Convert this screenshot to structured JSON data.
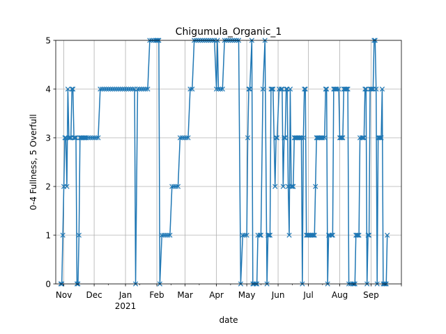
{
  "chart_data": {
    "type": "line",
    "title": "Chigumula_Organic_1",
    "xlabel": "date",
    "ylabel": "0-4 Fullness, 5 Overfull",
    "ylim": [
      0,
      5
    ],
    "yticks": [
      "0",
      "1",
      "2",
      "3",
      "4",
      "5"
    ],
    "xlim": [
      "2020-10-24",
      "2021-10-01"
    ],
    "xticks": [
      {
        "date": "2020-11-01",
        "label": "Nov"
      },
      {
        "date": "2020-12-01",
        "label": "Dec"
      },
      {
        "date": "2021-01-01",
        "label": "Jan",
        "sublabel": "2021"
      },
      {
        "date": "2021-02-01",
        "label": "Feb"
      },
      {
        "date": "2021-03-01",
        "label": "Mar"
      },
      {
        "date": "2021-04-01",
        "label": "Apr"
      },
      {
        "date": "2021-05-01",
        "label": "May"
      },
      {
        "date": "2021-06-01",
        "label": "Jun"
      },
      {
        "date": "2021-07-01",
        "label": "Jul"
      },
      {
        "date": "2021-08-01",
        "label": "Aug"
      },
      {
        "date": "2021-09-01",
        "label": "Sep"
      }
    ],
    "grid": true,
    "marker": "x",
    "color": "#1f77b4",
    "series": [
      {
        "x": [
          "2020-10-29",
          "2020-10-30",
          "2020-10-31",
          "2020-11-01",
          "2020-11-02",
          "2020-11-03",
          "2020-11-04",
          "2020-11-05",
          "2020-11-06",
          "2020-11-07",
          "2020-11-08",
          "2020-11-09",
          "2020-11-10",
          "2020-11-11",
          "2020-11-12",
          "2020-11-13",
          "2020-11-14",
          "2020-11-15",
          "2020-11-16",
          "2020-11-17",
          "2020-11-18",
          "2020-11-19",
          "2020-11-20",
          "2020-11-21",
          "2020-11-22",
          "2020-11-23",
          "2020-11-25",
          "2020-11-27",
          "2020-11-29",
          "2020-12-01",
          "2020-12-03",
          "2020-12-05",
          "2020-12-07",
          "2020-12-09",
          "2020-12-11",
          "2020-12-13",
          "2020-12-15",
          "2020-12-17",
          "2020-12-19",
          "2020-12-21",
          "2020-12-23",
          "2020-12-25",
          "2020-12-27",
          "2020-12-29",
          "2020-12-31",
          "2021-01-02",
          "2021-01-04",
          "2021-01-06",
          "2021-01-08",
          "2021-01-10",
          "2021-01-11",
          "2021-01-13",
          "2021-01-15",
          "2021-01-17",
          "2021-01-19",
          "2021-01-21",
          "2021-01-23",
          "2021-01-25",
          "2021-01-27",
          "2021-01-29",
          "2021-01-31",
          "2021-02-01",
          "2021-02-02",
          "2021-02-03",
          "2021-02-04",
          "2021-02-06",
          "2021-02-08",
          "2021-02-10",
          "2021-02-12",
          "2021-02-14",
          "2021-02-16",
          "2021-02-18",
          "2021-02-20",
          "2021-02-22",
          "2021-02-24",
          "2021-02-26",
          "2021-02-28",
          "2021-03-02",
          "2021-03-04",
          "2021-03-06",
          "2021-03-08",
          "2021-03-10",
          "2021-03-12",
          "2021-03-14",
          "2021-03-16",
          "2021-03-18",
          "2021-03-20",
          "2021-03-22",
          "2021-03-24",
          "2021-03-26",
          "2021-03-28",
          "2021-03-30",
          "2021-04-01",
          "2021-04-02",
          "2021-04-03",
          "2021-04-05",
          "2021-04-07",
          "2021-04-09",
          "2021-04-11",
          "2021-04-13",
          "2021-04-15",
          "2021-04-17",
          "2021-04-19",
          "2021-04-21",
          "2021-04-23",
          "2021-04-25",
          "2021-04-27",
          "2021-04-29",
          "2021-05-01",
          "2021-05-02",
          "2021-05-03",
          "2021-05-04",
          "2021-05-06",
          "2021-05-07",
          "2021-05-08",
          "2021-05-10",
          "2021-05-11",
          "2021-05-12",
          "2021-05-14",
          "2021-05-15",
          "2021-05-17",
          "2021-05-19",
          "2021-05-21",
          "2021-05-22",
          "2021-05-23",
          "2021-05-24",
          "2021-05-25",
          "2021-05-26",
          "2021-05-27",
          "2021-05-29",
          "2021-05-30",
          "2021-05-31",
          "2021-06-02",
          "2021-06-04",
          "2021-06-05",
          "2021-06-06",
          "2021-06-07",
          "2021-06-08",
          "2021-06-09",
          "2021-06-10",
          "2021-06-11",
          "2021-06-12",
          "2021-06-13",
          "2021-06-14",
          "2021-06-15",
          "2021-06-16",
          "2021-06-17",
          "2021-06-18",
          "2021-06-19",
          "2021-06-20",
          "2021-06-21",
          "2021-06-22",
          "2021-06-23",
          "2021-06-24",
          "2021-06-25",
          "2021-06-26",
          "2021-06-27",
          "2021-06-28",
          "2021-06-29",
          "2021-06-30",
          "2021-07-01",
          "2021-07-02",
          "2021-07-03",
          "2021-07-04",
          "2021-07-05",
          "2021-07-06",
          "2021-07-07",
          "2021-07-08",
          "2021-07-09",
          "2021-07-10",
          "2021-07-11",
          "2021-07-12",
          "2021-07-13",
          "2021-07-14",
          "2021-07-15",
          "2021-07-17",
          "2021-07-18",
          "2021-07-19",
          "2021-07-20",
          "2021-07-21",
          "2021-07-22",
          "2021-07-24",
          "2021-07-25",
          "2021-07-26",
          "2021-07-27",
          "2021-07-28",
          "2021-07-29",
          "2021-07-31",
          "2021-08-01",
          "2021-08-02",
          "2021-08-03",
          "2021-08-04",
          "2021-08-05",
          "2021-08-06",
          "2021-08-07",
          "2021-08-08",
          "2021-08-09",
          "2021-08-10",
          "2021-08-12",
          "2021-08-14",
          "2021-08-15",
          "2021-08-16",
          "2021-08-17",
          "2021-08-18",
          "2021-08-19",
          "2021-08-20",
          "2021-08-21",
          "2021-08-23",
          "2021-08-24",
          "2021-08-25",
          "2021-08-26",
          "2021-08-27",
          "2021-08-28",
          "2021-08-29",
          "2021-08-30",
          "2021-08-31",
          "2021-09-01",
          "2021-09-02",
          "2021-09-03",
          "2021-09-04",
          "2021-09-05",
          "2021-09-06",
          "2021-09-07",
          "2021-09-08",
          "2021-09-09",
          "2021-09-10",
          "2021-09-11",
          "2021-09-12",
          "2021-09-13",
          "2021-09-14",
          "2021-09-15",
          "2021-09-16",
          "2021-09-17"
        ],
        "y": [
          0,
          0,
          1,
          2,
          3,
          3,
          2,
          4,
          3,
          3,
          3,
          4,
          4,
          3,
          3,
          3,
          0,
          0,
          1,
          3,
          3,
          3,
          3,
          3,
          3,
          3,
          3,
          3,
          3,
          3,
          3,
          3,
          4,
          4,
          4,
          4,
          4,
          4,
          4,
          4,
          4,
          4,
          4,
          4,
          4,
          4,
          4,
          4,
          4,
          4,
          0,
          4,
          4,
          4,
          4,
          4,
          4,
          5,
          5,
          5,
          5,
          5,
          5,
          5,
          0,
          1,
          1,
          1,
          1,
          1,
          2,
          2,
          2,
          2,
          3,
          3,
          3,
          3,
          3,
          4,
          4,
          5,
          5,
          5,
          5,
          5,
          5,
          5,
          5,
          5,
          5,
          5,
          4,
          5,
          4,
          4,
          4,
          5,
          5,
          5,
          5,
          5,
          5,
          5,
          5,
          0,
          1,
          1,
          1,
          3,
          4,
          4,
          5,
          0,
          0,
          0,
          0,
          1,
          1,
          1,
          4,
          5,
          0,
          1,
          1,
          1,
          4,
          4,
          4,
          2,
          3,
          3,
          4,
          4,
          4,
          2,
          3,
          3,
          4,
          4,
          2,
          1,
          4,
          2,
          2,
          2,
          3,
          3,
          3,
          3,
          3,
          3,
          3,
          3,
          0,
          3,
          4,
          4,
          1,
          1,
          1,
          1,
          1,
          1,
          1,
          1,
          1,
          2,
          3,
          3,
          3,
          3,
          3,
          3,
          3,
          3,
          4,
          4,
          0,
          1,
          1,
          1,
          1,
          4,
          4,
          4,
          4,
          4,
          3,
          3,
          3,
          3,
          4,
          4,
          4,
          4,
          4,
          0,
          0,
          0,
          0,
          0,
          1,
          1,
          1,
          1,
          3,
          3,
          3,
          3,
          4,
          4,
          0,
          1,
          1,
          4,
          4,
          4,
          4,
          5,
          5,
          4,
          0,
          3,
          3,
          3,
          3,
          4,
          0,
          0,
          0,
          0,
          1
        ]
      }
    ]
  }
}
